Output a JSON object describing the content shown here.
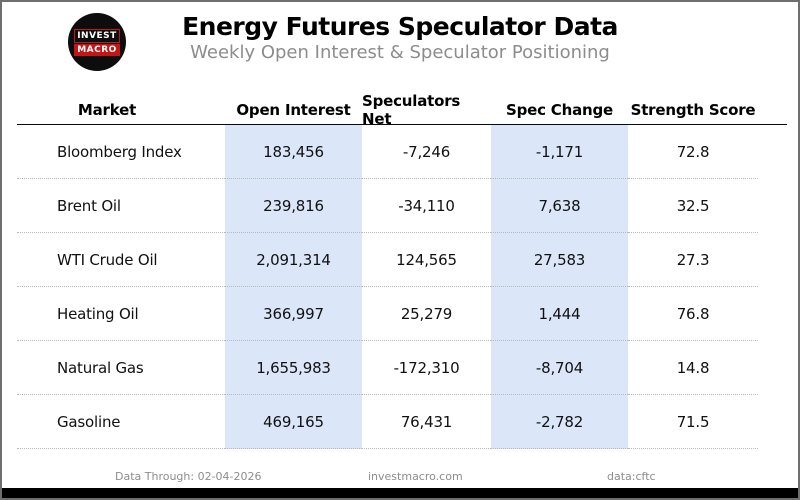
{
  "header": {
    "title": "Energy Futures Speculator Data",
    "subtitle": "Weekly Open Interest & Speculator Positioning",
    "logo": {
      "line1": "INVEST",
      "line2": "MACRO"
    }
  },
  "table": {
    "columns": [
      "Market",
      "Open Interest",
      "Speculators Net",
      "Spec Change",
      "Strength Score"
    ],
    "highlighted_columns": [
      "Open Interest",
      "Spec Change"
    ],
    "rows": [
      {
        "market": "Bloomberg Index",
        "open_interest": "183,456",
        "speculators_net": "-7,246",
        "spec_change": "-1,171",
        "strength_score": "72.8"
      },
      {
        "market": "Brent Oil",
        "open_interest": "239,816",
        "speculators_net": "-34,110",
        "spec_change": "7,638",
        "strength_score": "32.5"
      },
      {
        "market": "WTI Crude Oil",
        "open_interest": "2,091,314",
        "speculators_net": "124,565",
        "spec_change": "27,583",
        "strength_score": "27.3"
      },
      {
        "market": "Heating Oil",
        "open_interest": "366,997",
        "speculators_net": "25,279",
        "spec_change": "1,444",
        "strength_score": "76.8"
      },
      {
        "market": "Natural Gas",
        "open_interest": "1,655,983",
        "speculators_net": "-172,310",
        "spec_change": "-8,704",
        "strength_score": "14.8"
      },
      {
        "market": "Gasoline",
        "open_interest": "469,165",
        "speculators_net": "76,431",
        "spec_change": "-2,782",
        "strength_score": "71.5"
      }
    ]
  },
  "footer": {
    "data_through": "Data Through: 02-04-2026",
    "website": "investmacro.com",
    "source": "data:cftc"
  },
  "colors": {
    "highlight_column_bg": "#dbe7f9",
    "logo_red": "#c41616",
    "logo_black": "#0d0d0d",
    "subtitle_gray": "#8c8c8c",
    "footer_gray": "#8d8d8d",
    "bottom_bar": "#000000",
    "page_border": "#6f6f6f"
  },
  "chart_data": {
    "type": "table",
    "title": "Energy Futures Speculator Data",
    "subtitle": "Weekly Open Interest & Speculator Positioning",
    "columns": [
      "Market",
      "Open Interest",
      "Speculators Net",
      "Spec Change",
      "Strength Score"
    ],
    "rows": [
      [
        "Bloomberg Index",
        183456,
        -7246,
        -1171,
        72.8
      ],
      [
        "Brent Oil",
        239816,
        -34110,
        7638,
        32.5
      ],
      [
        "WTI Crude Oil",
        2091314,
        124565,
        27583,
        27.3
      ],
      [
        "Heating Oil",
        366997,
        25279,
        1444,
        76.8
      ],
      [
        "Natural Gas",
        1655983,
        -172310,
        -8704,
        14.8
      ],
      [
        "Gasoline",
        469165,
        76431,
        -2782,
        71.5
      ]
    ],
    "notes": [
      "Open Interest and Spec Change columns are highlighted light blue"
    ],
    "source": "data:cftc",
    "data_through": "02-04-2026"
  }
}
